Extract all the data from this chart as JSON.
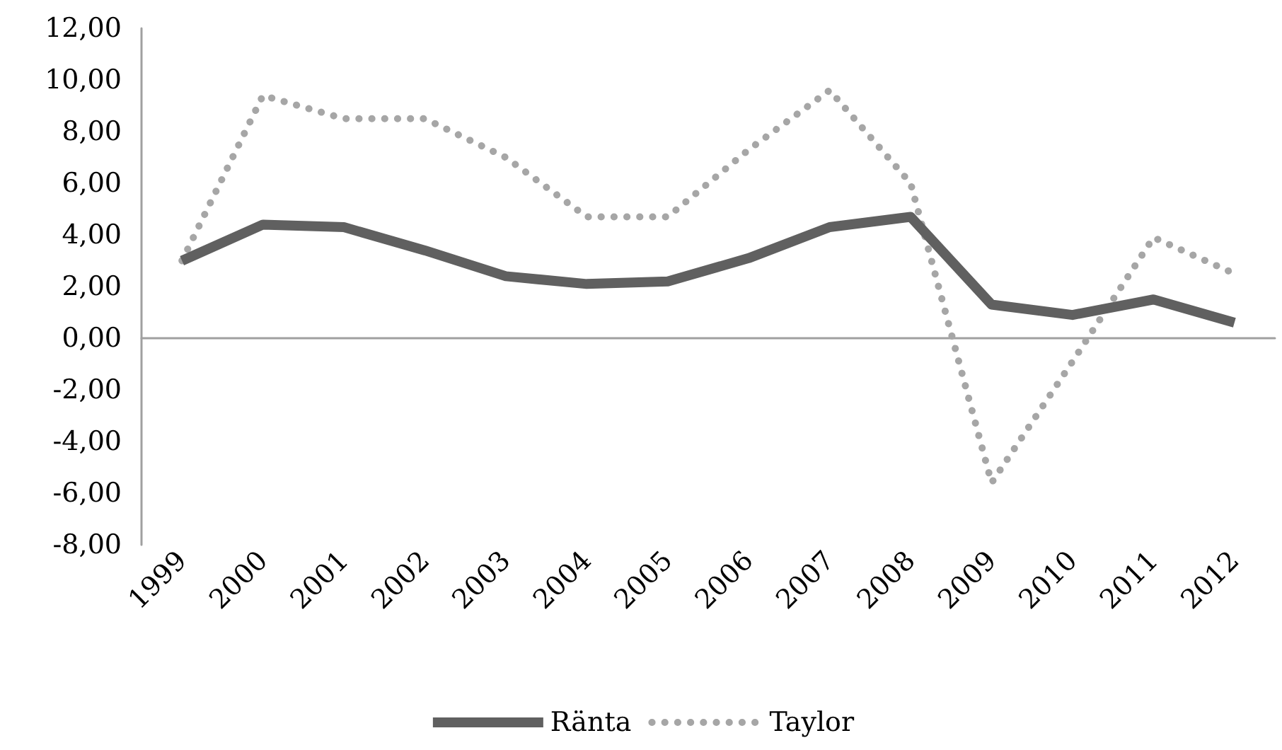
{
  "chart_data": {
    "type": "line",
    "categories": [
      "1999",
      "2000",
      "2001",
      "2002",
      "2003",
      "2004",
      "2005",
      "2006",
      "2007",
      "2008",
      "2009",
      "2010",
      "2011",
      "2012"
    ],
    "series": [
      {
        "name": "Ränta",
        "color": "#606060",
        "line_style": "solid",
        "values": [
          3.0,
          4.4,
          4.3,
          3.4,
          2.4,
          2.1,
          2.2,
          3.1,
          4.3,
          4.7,
          1.3,
          0.9,
          1.5,
          0.6
        ]
      },
      {
        "name": "Taylor",
        "color": "#a6a6a6",
        "line_style": "dotted",
        "values": [
          3.0,
          9.4,
          8.5,
          8.5,
          7.0,
          4.7,
          4.7,
          7.3,
          9.6,
          6.0,
          -5.6,
          -0.9,
          3.9,
          2.5
        ]
      }
    ],
    "ylim": [
      -8,
      12
    ],
    "yticks": [
      {
        "value": -8,
        "label": "-8,00"
      },
      {
        "value": -6,
        "label": "-6,00"
      },
      {
        "value": -4,
        "label": "-4,00"
      },
      {
        "value": -2,
        "label": "-2,00"
      },
      {
        "value": 0,
        "label": "0,00"
      },
      {
        "value": 2,
        "label": "2,00"
      },
      {
        "value": 4,
        "label": "4,00"
      },
      {
        "value": 6,
        "label": "6,00"
      },
      {
        "value": 8,
        "label": "8,00"
      },
      {
        "value": 10,
        "label": "10,00"
      },
      {
        "value": 12,
        "label": "12,00"
      }
    ],
    "legend": "bottom",
    "marker": "none"
  }
}
